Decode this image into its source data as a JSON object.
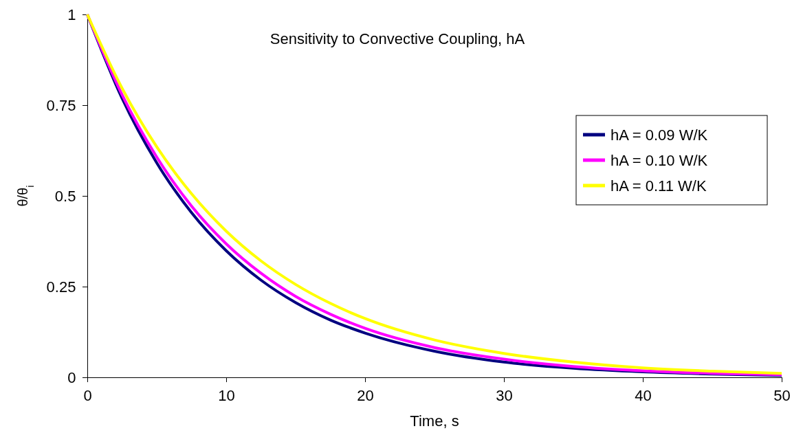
{
  "chart_data": {
    "type": "line",
    "title": "Sensitivity to Convective Coupling, hA",
    "xlabel": "Time, s",
    "ylabel": "θ/θ$_{i}$",
    "x": [
      0,
      2.5,
      5,
      7.5,
      10,
      12.5,
      15,
      17.5,
      20,
      25,
      30,
      35,
      40,
      45,
      50
    ],
    "series": [
      {
        "name": "hA = 0.09 W/K",
        "color": "#000080",
        "values": [
          1,
          0.769,
          0.591,
          0.454,
          0.349,
          0.268,
          0.206,
          0.158,
          0.122,
          0.072,
          0.042,
          0.025,
          0.015,
          0.009,
          0.005
        ]
      },
      {
        "name": "hA = 0.10 W/K",
        "color": "#ff00ff",
        "values": [
          1,
          0.779,
          0.607,
          0.472,
          0.368,
          0.287,
          0.223,
          0.174,
          0.135,
          0.082,
          0.05,
          0.03,
          0.018,
          0.011,
          0.007
        ]
      },
      {
        "name": "hA = 0.11 W/K",
        "color": "#ffff00",
        "values": [
          1,
          0.797,
          0.635,
          0.506,
          0.403,
          0.321,
          0.256,
          0.204,
          0.162,
          0.103,
          0.066,
          0.042,
          0.026,
          0.017,
          0.011
        ]
      }
    ],
    "xlim": [
      0,
      50
    ],
    "xticks": [
      0,
      10,
      20,
      30,
      40,
      50
    ],
    "ylim": [
      0,
      1
    ],
    "yticks": [
      0,
      0.25,
      0.5,
      0.75,
      1
    ],
    "grid": false,
    "legend": "right",
    "marker": "none",
    "line_style": "solid"
  }
}
